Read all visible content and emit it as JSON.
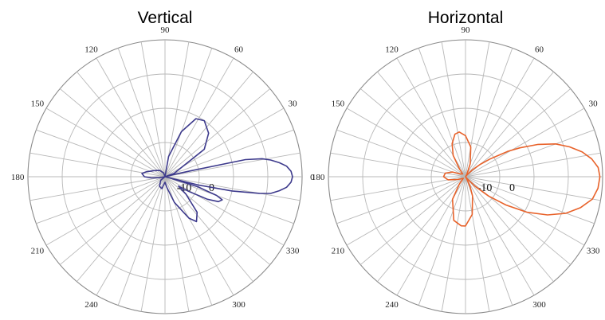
{
  "chart_data": [
    {
      "type": "polar-line",
      "title": "Vertical",
      "angular_unit": "degrees",
      "angle_labels": [
        "0",
        "30",
        "60",
        "90",
        "120",
        "150",
        "180",
        "210",
        "240",
        "270",
        "300",
        "330"
      ],
      "radial_labels": [
        "-10",
        "0"
      ],
      "series": [
        {
          "color": "#3d3a8c",
          "points": [
            [
              -20,
              0.0
            ],
            [
              -14,
              0.25
            ],
            [
              -12,
              0.5
            ],
            [
              -10,
              0.7
            ],
            [
              -9,
              0.78
            ],
            [
              -7,
              0.84
            ],
            [
              -5,
              0.89
            ],
            [
              -2.5,
              0.92
            ],
            [
              0,
              0.93
            ],
            [
              2.5,
              0.92
            ],
            [
              5,
              0.89
            ],
            [
              7,
              0.84
            ],
            [
              9,
              0.78
            ],
            [
              10.5,
              0.72
            ],
            [
              12,
              0.6
            ],
            [
              13,
              0.2
            ],
            [
              14,
              0.08
            ],
            [
              16,
              0.0
            ],
            [
              20,
              0.07
            ],
            [
              35,
              0.35
            ],
            [
              45,
              0.45
            ],
            [
              55,
              0.5
            ],
            [
              62,
              0.48
            ],
            [
              70,
              0.35
            ],
            [
              80,
              0.15
            ],
            [
              90,
              0.0
            ],
            [
              110,
              0.03
            ],
            [
              130,
              0.06
            ],
            [
              150,
              0.09
            ],
            [
              165,
              0.14
            ],
            [
              172,
              0.17
            ],
            [
              180,
              0.15
            ],
            [
              185,
              0.1
            ],
            [
              190,
              0.04
            ],
            [
              200,
              0.0
            ],
            [
              220,
              0.04
            ],
            [
              240,
              0.08
            ],
            [
              255,
              0.09
            ],
            [
              270,
              0.04
            ],
            [
              280,
              0.08
            ],
            [
              290,
              0.2
            ],
            [
              300,
              0.35
            ],
            [
              305,
              0.4
            ],
            [
              312,
              0.35
            ],
            [
              320,
              0.2
            ],
            [
              325,
              0.12
            ],
            [
              328,
              0.2
            ],
            [
              332,
              0.35
            ],
            [
              335,
              0.43
            ],
            [
              338,
              0.45
            ],
            [
              340,
              0.4
            ],
            [
              343,
              0.25
            ],
            [
              346,
              0.04
            ],
            [
              350,
              0.0
            ]
          ]
        }
      ]
    },
    {
      "type": "polar-line",
      "title": "Horizontal",
      "angular_unit": "degrees",
      "angle_labels": [
        "0",
        "30",
        "60",
        "90",
        "120",
        "150",
        "180",
        "210",
        "240",
        "270",
        "300",
        "330"
      ],
      "radial_labels": [
        "-10",
        "0"
      ],
      "series": [
        {
          "color": "#e8622a",
          "points": [
            [
              0,
              0.98
            ],
            [
              4,
              0.97
            ],
            [
              8,
              0.93
            ],
            [
              12,
              0.87
            ],
            [
              16,
              0.79
            ],
            [
              20,
              0.7
            ],
            [
              24,
              0.58
            ],
            [
              28,
              0.45
            ],
            [
              31,
              0.36
            ],
            [
              34,
              0.26
            ],
            [
              36,
              0.22
            ],
            [
              40,
              0.14
            ],
            [
              45,
              0.07
            ],
            [
              50,
              0.02
            ],
            [
              55,
              0.0
            ],
            [
              60,
              0.02
            ],
            [
              70,
              0.1
            ],
            [
              80,
              0.22
            ],
            [
              90,
              0.3
            ],
            [
              98,
              0.33
            ],
            [
              104,
              0.32
            ],
            [
              112,
              0.26
            ],
            [
              120,
              0.18
            ],
            [
              128,
              0.07
            ],
            [
              135,
              0.03
            ],
            [
              150,
              0.04
            ],
            [
              160,
              0.1
            ],
            [
              170,
              0.15
            ],
            [
              180,
              0.16
            ],
            [
              190,
              0.13
            ],
            [
              200,
              0.06
            ],
            [
              215,
              0.02
            ],
            [
              230,
              0.07
            ],
            [
              240,
              0.19
            ],
            [
              255,
              0.33
            ],
            [
              265,
              0.36
            ],
            [
              270,
              0.36
            ],
            [
              280,
              0.28
            ],
            [
              290,
              0.15
            ],
            [
              295,
              0.08
            ],
            [
              300,
              0.02
            ],
            [
              305,
              0.0
            ],
            [
              310,
              0.02
            ],
            [
              315,
              0.1
            ],
            [
              320,
              0.22
            ],
            [
              325,
              0.36
            ],
            [
              330,
              0.52
            ],
            [
              335,
              0.66
            ],
            [
              340,
              0.78
            ],
            [
              345,
              0.87
            ],
            [
              350,
              0.94
            ],
            [
              355,
              0.97
            ],
            [
              360,
              0.98
            ]
          ]
        }
      ]
    }
  ]
}
